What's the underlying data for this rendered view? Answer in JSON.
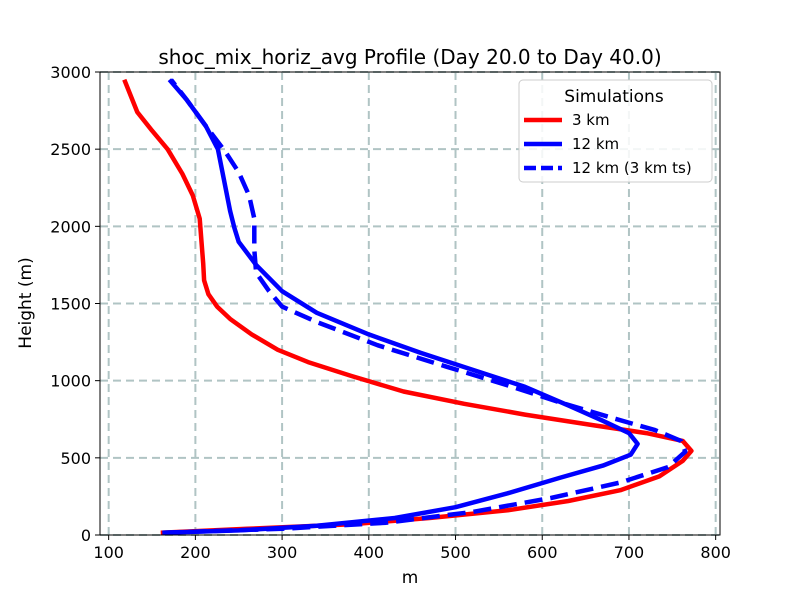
{
  "chart_data": {
    "type": "line",
    "title": "shoc_mix_horiz_avg Profile (Day 20.0 to Day 40.0)",
    "xlabel": "m",
    "ylabel": "Height (m)",
    "xlim": [
      90,
      805
    ],
    "ylim": [
      0,
      3000
    ],
    "xticks": [
      100,
      200,
      300,
      400,
      500,
      600,
      700,
      800
    ],
    "yticks": [
      0,
      500,
      1000,
      1500,
      2000,
      2500,
      3000
    ],
    "grid": true,
    "legend": {
      "title": "Simulations",
      "placement": "top-right"
    },
    "series": [
      {
        "name": "3 km",
        "color": "#ff0000",
        "linestyle": "solid",
        "points": [
          [
            160,
            15
          ],
          [
            260,
            40
          ],
          [
            380,
            70
          ],
          [
            470,
            110
          ],
          [
            560,
            160
          ],
          [
            630,
            220
          ],
          [
            690,
            290
          ],
          [
            735,
            380
          ],
          [
            762,
            480
          ],
          [
            772,
            545
          ],
          [
            762,
            610
          ],
          [
            720,
            660
          ],
          [
            660,
            710
          ],
          [
            580,
            780
          ],
          [
            510,
            850
          ],
          [
            440,
            930
          ],
          [
            380,
            1030
          ],
          [
            330,
            1120
          ],
          [
            295,
            1200
          ],
          [
            265,
            1300
          ],
          [
            240,
            1400
          ],
          [
            225,
            1480
          ],
          [
            215,
            1560
          ],
          [
            210,
            1650
          ],
          [
            209,
            1760
          ],
          [
            207,
            1900
          ],
          [
            205,
            2050
          ],
          [
            197,
            2200
          ],
          [
            185,
            2340
          ],
          [
            168,
            2500
          ],
          [
            150,
            2620
          ],
          [
            133,
            2740
          ],
          [
            118,
            2950
          ]
        ]
      },
      {
        "name": "12 km",
        "color": "#0000ff",
        "linestyle": "solid",
        "points": [
          [
            162,
            15
          ],
          [
            250,
            30
          ],
          [
            340,
            60
          ],
          [
            430,
            110
          ],
          [
            500,
            180
          ],
          [
            560,
            270
          ],
          [
            620,
            370
          ],
          [
            670,
            450
          ],
          [
            702,
            520
          ],
          [
            710,
            590
          ],
          [
            700,
            660
          ],
          [
            670,
            740
          ],
          [
            630,
            840
          ],
          [
            580,
            960
          ],
          [
            520,
            1070
          ],
          [
            460,
            1180
          ],
          [
            400,
            1300
          ],
          [
            340,
            1440
          ],
          [
            300,
            1580
          ],
          [
            270,
            1750
          ],
          [
            250,
            1900
          ],
          [
            245,
            1990
          ],
          [
            240,
            2100
          ],
          [
            233,
            2300
          ],
          [
            226,
            2500
          ],
          [
            212,
            2650
          ],
          [
            190,
            2820
          ],
          [
            170,
            2950
          ]
        ]
      },
      {
        "name": "12 km (3 km ts)",
        "color": "#0000ff",
        "linestyle": "dashed",
        "points": [
          [
            162,
            15
          ],
          [
            300,
            40
          ],
          [
            420,
            80
          ],
          [
            520,
            150
          ],
          [
            610,
            240
          ],
          [
            690,
            340
          ],
          [
            745,
            440
          ],
          [
            765,
            540
          ],
          [
            760,
            610
          ],
          [
            730,
            680
          ],
          [
            680,
            760
          ],
          [
            620,
            860
          ],
          [
            560,
            970
          ],
          [
            490,
            1090
          ],
          [
            410,
            1230
          ],
          [
            340,
            1380
          ],
          [
            300,
            1480
          ],
          [
            285,
            1580
          ],
          [
            270,
            1700
          ],
          [
            268,
            1850
          ],
          [
            268,
            2050
          ],
          [
            262,
            2200
          ],
          [
            250,
            2350
          ],
          [
            235,
            2480
          ],
          [
            212,
            2650
          ],
          [
            190,
            2820
          ],
          [
            172,
            2950
          ]
        ]
      }
    ]
  }
}
